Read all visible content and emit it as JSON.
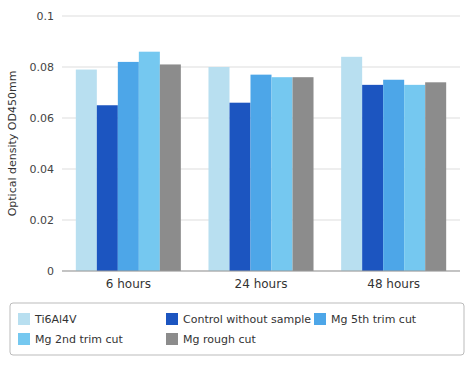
{
  "chart_data": {
    "type": "bar",
    "categories": [
      "6 hours",
      "24 hours",
      "48 hours"
    ],
    "series": [
      {
        "name": "Ti6Al4V",
        "color": "#b8dff0",
        "values": [
          0.079,
          0.08,
          0.084
        ]
      },
      {
        "name": "Control without sample",
        "color": "#1c55c0",
        "values": [
          0.065,
          0.066,
          0.073
        ]
      },
      {
        "name": "Mg 5th trim cut",
        "color": "#4da6e8",
        "values": [
          0.082,
          0.077,
          0.075
        ]
      },
      {
        "name": "Mg 2nd trim cut",
        "color": "#75c8f0",
        "values": [
          0.086,
          0.076,
          0.073
        ]
      },
      {
        "name": "Mg rough cut",
        "color": "#8c8c8c",
        "values": [
          0.081,
          0.076,
          0.074
        ]
      }
    ],
    "y_label": "Optical density OD450mm",
    "ylim": [
      0,
      0.1
    ],
    "yticks": [
      0,
      0.02,
      0.04,
      0.06,
      0.08,
      0.1
    ],
    "grid": true,
    "legend": "bottom"
  }
}
